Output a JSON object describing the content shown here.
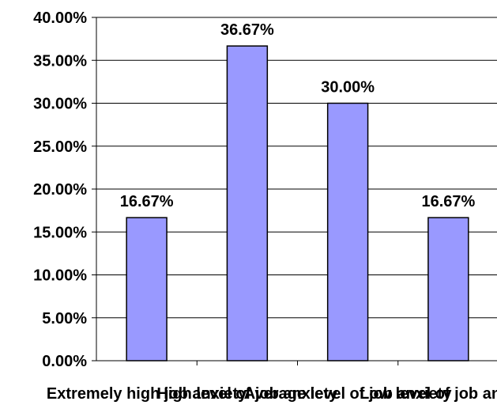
{
  "chart_data": {
    "type": "bar",
    "categories": [
      "Extremely high job anxiety",
      "High level of job anxiety",
      "Average level of job anxiety",
      "Low level of job anxiety"
    ],
    "values": [
      16.67,
      36.67,
      30.0,
      16.67
    ],
    "data_labels": [
      "16.67%",
      "36.67%",
      "30.00%",
      "16.67%"
    ],
    "y_ticks": [
      "0.00%",
      "5.00%",
      "10.00%",
      "15.00%",
      "20.00%",
      "25.00%",
      "30.00%",
      "35.00%",
      "40.00%"
    ],
    "ylim": [
      0,
      40
    ],
    "grid": true,
    "legend": false,
    "title": "",
    "xlabel": "",
    "ylabel": "",
    "colors": {
      "bar_fill": "#9999ff",
      "bar_stroke": "#000000",
      "grid": "#000000",
      "axis": "#000000"
    }
  }
}
